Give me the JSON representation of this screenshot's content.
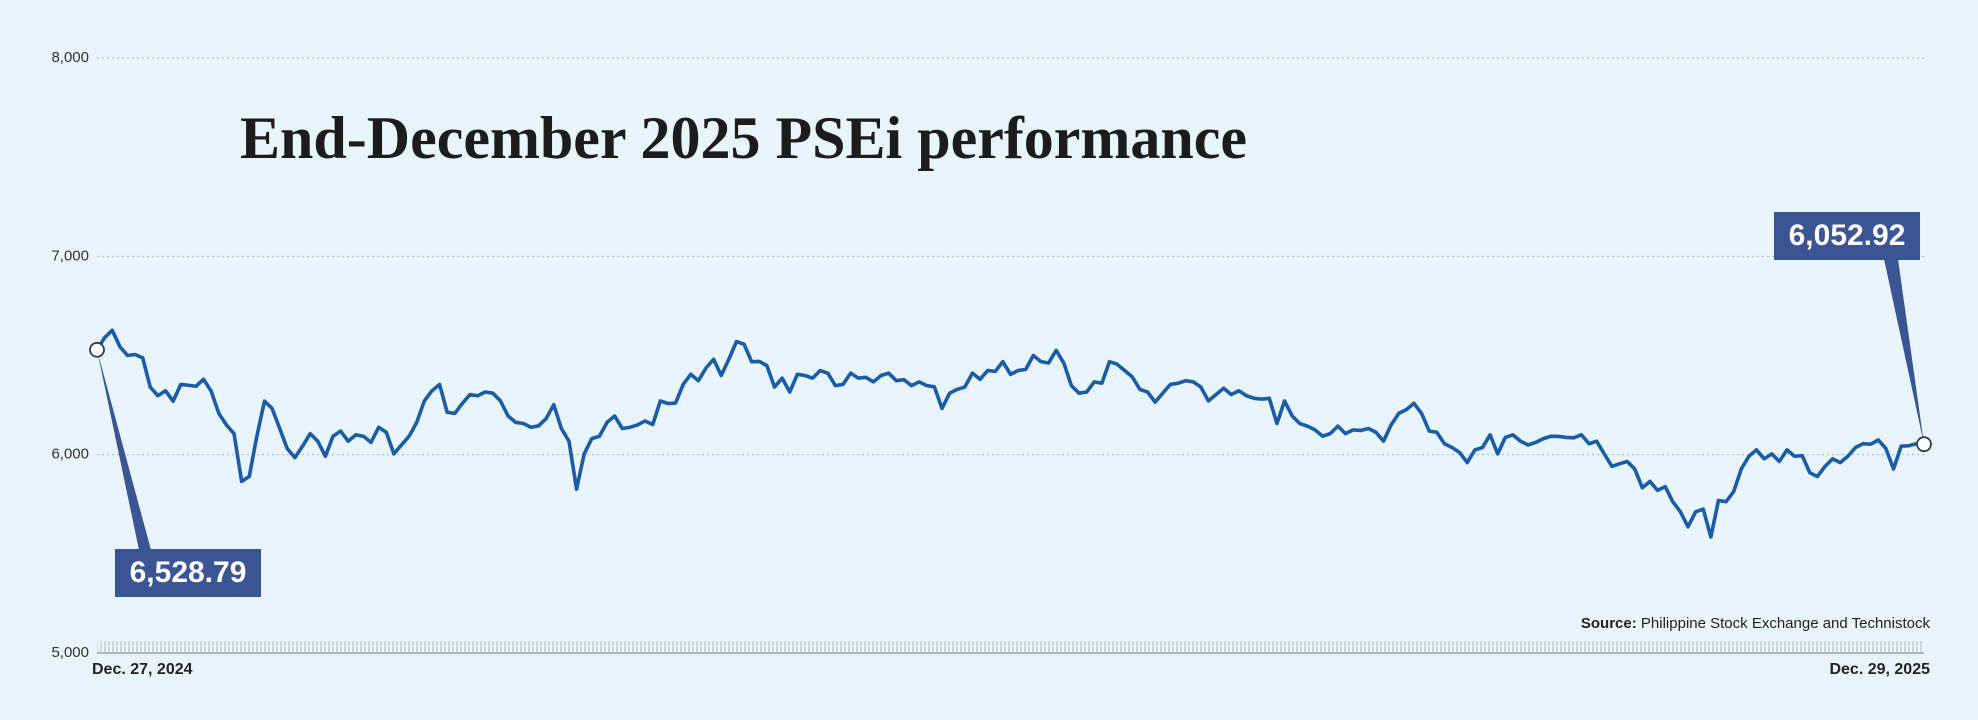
{
  "chart_data": {
    "type": "line",
    "title": "End-December 2025 PSEi performance",
    "source_label": "Source:",
    "source": "Philippine Stock Exchange and Technistock",
    "color": "#1a5ca8",
    "ylim": [
      5000,
      8000
    ],
    "yticks": [
      {
        "value": 5000,
        "label": "5,000"
      },
      {
        "value": 6000,
        "label": "6,000"
      },
      {
        "value": 7000,
        "label": "7,000"
      },
      {
        "value": 8000,
        "label": "8,000"
      }
    ],
    "grid": true,
    "categories": [
      "Dec. 27, 2024",
      null,
      null,
      null,
      null,
      null,
      null,
      null,
      null,
      null,
      null,
      null,
      null,
      null,
      null,
      null,
      null,
      null,
      null,
      null,
      null,
      null,
      null,
      null,
      null,
      null,
      null,
      null,
      null,
      null,
      null,
      null,
      null,
      null,
      null,
      null,
      null,
      null,
      null,
      null,
      null,
      null,
      null,
      null,
      null,
      null,
      null,
      null,
      null,
      null,
      null,
      null,
      null,
      null,
      null,
      null,
      null,
      null,
      null,
      null,
      null,
      null,
      null,
      null,
      null,
      null,
      null,
      null,
      null,
      null,
      null,
      null,
      null,
      null,
      null,
      null,
      null,
      null,
      null,
      null,
      null,
      null,
      null,
      null,
      null,
      null,
      null,
      null,
      null,
      null,
      null,
      null,
      null,
      null,
      null,
      null,
      null,
      null,
      null,
      null,
      null,
      null,
      null,
      null,
      null,
      null,
      null,
      null,
      null,
      null,
      null,
      null,
      null,
      null,
      null,
      null,
      null,
      null,
      null,
      null,
      null,
      null,
      null,
      null,
      null,
      null,
      null,
      null,
      null,
      null,
      null,
      null,
      null,
      null,
      null,
      null,
      null,
      null,
      null,
      null,
      null,
      null,
      null,
      null,
      null,
      null,
      null,
      null,
      null,
      null,
      null,
      null,
      null,
      null,
      null,
      null,
      null,
      null,
      null,
      null,
      null,
      null,
      null,
      null,
      null,
      null,
      null,
      null,
      null,
      null,
      null,
      null,
      null,
      null,
      null,
      null,
      null,
      null,
      null,
      null,
      null,
      null,
      null,
      null,
      null,
      null,
      null,
      null,
      null,
      null,
      null,
      null,
      null,
      null,
      null,
      null,
      null,
      null,
      null,
      null,
      null,
      null,
      null,
      null,
      null,
      null,
      null,
      null,
      null,
      null,
      null,
      null,
      null,
      null,
      null,
      null,
      null,
      null,
      null,
      null,
      null,
      null,
      null,
      null,
      null,
      null,
      null,
      null,
      null,
      null,
      null,
      null,
      null,
      null,
      null,
      null,
      null,
      null,
      null,
      null,
      "Dec. 29, 2025"
    ],
    "values": [
      6528.79,
      6590,
      6627,
      6545,
      6500,
      6505,
      6488,
      6340,
      6297,
      6322,
      6270,
      6354,
      6350,
      6345,
      6380,
      6320,
      6208,
      6150,
      6106,
      5865,
      5890,
      6093,
      6270,
      6233,
      6132,
      6030,
      5985,
      6043,
      6106,
      6068,
      5992,
      6093,
      6119,
      6068,
      6100,
      6093,
      6062,
      6138,
      6113,
      6004,
      6049,
      6093,
      6163,
      6271,
      6322,
      6354,
      6214,
      6208,
      6259,
      6303,
      6297,
      6316,
      6310,
      6271,
      6195,
      6163,
      6157,
      6138,
      6145,
      6182,
      6252,
      6132,
      6068,
      5826,
      6004,
      6081,
      6093,
      6163,
      6195,
      6132,
      6138,
      6150,
      6170,
      6152,
      6271,
      6258,
      6260,
      6354,
      6405,
      6373,
      6437,
      6481,
      6399,
      6481,
      6570,
      6557,
      6468,
      6470,
      6449,
      6341,
      6386,
      6316,
      6405,
      6399,
      6386,
      6424,
      6411,
      6348,
      6354,
      6411,
      6386,
      6390,
      6367,
      6399,
      6411,
      6373,
      6378,
      6348,
      6367,
      6348,
      6342,
      6233,
      6310,
      6329,
      6341,
      6411,
      6380,
      6424,
      6420,
      6469,
      6405,
      6424,
      6430,
      6500,
      6469,
      6462,
      6526,
      6462,
      6348,
      6310,
      6316,
      6367,
      6360,
      6469,
      6456,
      6424,
      6392,
      6329,
      6316,
      6265,
      6310,
      6354,
      6360,
      6373,
      6367,
      6341,
      6271,
      6303,
      6335,
      6303,
      6322,
      6297,
      6284,
      6280,
      6284,
      6157,
      6271,
      6195,
      6157,
      6144,
      6125,
      6093,
      6106,
      6144,
      6106,
      6125,
      6122,
      6132,
      6113,
      6068,
      6150,
      6208,
      6227,
      6259,
      6208,
      6119,
      6113,
      6055,
      6036,
      6011,
      5960,
      6024,
      6036,
      6100,
      6004,
      6087,
      6100,
      6068,
      6049,
      6062,
      6081,
      6093,
      6092,
      6087,
      6085,
      6100,
      6055,
      6068,
      6004,
      5941,
      5954,
      5966,
      5928,
      5833,
      5865,
      5820,
      5839,
      5763,
      5712,
      5636,
      5712,
      5725,
      5585,
      5769,
      5763,
      5814,
      5928,
      5992,
      6024,
      5979,
      6004,
      5966,
      6024,
      5992,
      5995,
      5909,
      5890,
      5941,
      5979,
      5960,
      5992,
      6036,
      6055,
      6053,
      6074,
      6030,
      5928,
      6043,
      6045,
      6055,
      6052.92
    ],
    "value_labels": [
      "6,528.79",
      null,
      null,
      null,
      null,
      null,
      null,
      null,
      null,
      null,
      null,
      null,
      null,
      null,
      null,
      null,
      null,
      null,
      null,
      null,
      null,
      null,
      null,
      null,
      null,
      null,
      null,
      null,
      null,
      null,
      null,
      null,
      null,
      null,
      null,
      null,
      null,
      null,
      null,
      null,
      null,
      null,
      null,
      null,
      null,
      null,
      null,
      null,
      null,
      null,
      null,
      null,
      null,
      null,
      null,
      null,
      null,
      null,
      null,
      null,
      null,
      null,
      null,
      null,
      null,
      null,
      null,
      null,
      null,
      null,
      null,
      null,
      null,
      null,
      null,
      null,
      null,
      null,
      null,
      null,
      null,
      null,
      null,
      null,
      null,
      null,
      null,
      null,
      null,
      null,
      null,
      null,
      null,
      null,
      null,
      null,
      null,
      null,
      null,
      null,
      null,
      null,
      null,
      null,
      null,
      null,
      null,
      null,
      null,
      null,
      null,
      null,
      null,
      null,
      null,
      null,
      null,
      null,
      null,
      null,
      null,
      null,
      null,
      null,
      null,
      null,
      null,
      null,
      null,
      null,
      null,
      null,
      null,
      null,
      null,
      null,
      null,
      null,
      null,
      null,
      null,
      null,
      null,
      null,
      null,
      null,
      null,
      null,
      null,
      null,
      null,
      null,
      null,
      null,
      null,
      null,
      null,
      null,
      null,
      null,
      null,
      null,
      null,
      null,
      null,
      null,
      null,
      null,
      null,
      null,
      null,
      null,
      null,
      null,
      null,
      null,
      null,
      null,
      null,
      null,
      null,
      null,
      null,
      null,
      null,
      null,
      null,
      null,
      null,
      null,
      null,
      null,
      null,
      null,
      null,
      null,
      null,
      null,
      null,
      null,
      null,
      null,
      null,
      null,
      null,
      null,
      null,
      null,
      null,
      null,
      null,
      null,
      null,
      null,
      null,
      null,
      null,
      null,
      null,
      null,
      null,
      null,
      null,
      null,
      null,
      null,
      null,
      null,
      null,
      null,
      null,
      null,
      null,
      null,
      null,
      null,
      null,
      null,
      null,
      null,
      "6,052.92"
    ]
  }
}
